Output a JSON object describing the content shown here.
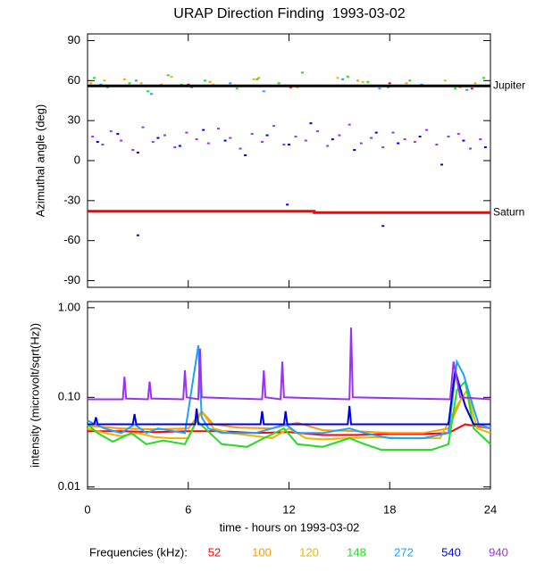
{
  "chart_data": [
    {
      "type": "scatter",
      "title": "URAP Direction Finding  1993-03-02",
      "ylabel": "Azimuthal angle (deg)",
      "xlim": [
        0,
        24
      ],
      "ylim": [
        -95,
        95
      ],
      "yticks": [
        -90,
        -60,
        -30,
        0,
        30,
        60,
        90
      ],
      "series": [
        {
          "color": "#ff0000",
          "x": [
            1.5,
            6.0,
            12.1,
            18.0,
            22.9
          ],
          "values": [
            56,
            57,
            55,
            58,
            54
          ]
        },
        {
          "color": "#ff9900",
          "x": [
            0.2,
            2.2,
            4.4,
            7.3,
            10.2,
            13.9,
            16.1,
            19.0,
            22.2
          ],
          "values": [
            58,
            61,
            57,
            59,
            62,
            56,
            60,
            58,
            55
          ]
        },
        {
          "color": "#e6b800",
          "x": [
            1.0,
            3.2,
            5.0,
            7.5,
            9.9,
            12.5,
            14.9,
            16.4,
            18.7,
            21.3,
            23.1
          ],
          "values": [
            60,
            58,
            63,
            57,
            61,
            55,
            62,
            59,
            56,
            60,
            58
          ]
        },
        {
          "color": "#22dd22",
          "x": [
            0.4,
            1.2,
            2.5,
            3.6,
            4.8,
            5.6,
            7.0,
            8.9,
            10.1,
            11.4,
            12.8,
            14.1,
            15.5,
            16.7,
            17.9,
            19.2,
            21.9,
            23.6
          ],
          "values": [
            62,
            55,
            58,
            52,
            64,
            57,
            60,
            54,
            61,
            58,
            66,
            56,
            63,
            59,
            55,
            60,
            54,
            62
          ]
        },
        {
          "color": "#1ea0ff",
          "x": [
            0.8,
            2.9,
            3.8,
            6.2,
            8.5,
            10.5,
            13.6,
            15.2,
            17.4,
            19.9,
            22.6
          ],
          "values": [
            57,
            60,
            50,
            55,
            58,
            52,
            56,
            61,
            54,
            57,
            53
          ]
        },
        {
          "color": "#0000dd",
          "x": [
            0.6,
            1.8,
            3.0,
            4.2,
            5.5,
            6.9,
            8.2,
            9.4,
            10.7,
            12.0,
            13.3,
            14.6,
            15.9,
            17.2,
            18.5,
            19.8,
            21.1,
            22.4,
            23.7,
            3.0,
            11.9,
            17.6
          ],
          "values": [
            14,
            20,
            6,
            17,
            11,
            23,
            15,
            4,
            19,
            12,
            28,
            16,
            8,
            21,
            13,
            18,
            -3,
            15,
            10,
            -56,
            -33,
            -49
          ]
        },
        {
          "color": "#9933ee",
          "x": [
            0.3,
            0.9,
            1.4,
            2.0,
            2.7,
            3.3,
            3.9,
            4.6,
            5.2,
            5.9,
            6.5,
            7.2,
            7.8,
            8.5,
            9.1,
            9.8,
            10.4,
            11.1,
            11.7,
            12.4,
            13.0,
            13.7,
            14.3,
            15.0,
            15.6,
            16.3,
            16.9,
            17.6,
            18.2,
            18.9,
            19.5,
            20.2,
            20.8,
            21.5,
            22.1,
            22.8,
            23.4
          ],
          "values": [
            18,
            12,
            22,
            15,
            8,
            25,
            14,
            19,
            10,
            21,
            16,
            13,
            24,
            17,
            9,
            20,
            14,
            26,
            12,
            18,
            15,
            22,
            11,
            19,
            27,
            13,
            17,
            10,
            21,
            16,
            14,
            23,
            12,
            18,
            20,
            9,
            16
          ]
        }
      ],
      "reference_lines": [
        {
          "name": "Jupiter",
          "color": "#000000",
          "x": [
            0,
            24
          ],
          "values": [
            56,
            56
          ]
        },
        {
          "name": "Saturn",
          "color": "#ff0000",
          "x": [
            0,
            13.5,
            13.5,
            24
          ],
          "values": [
            -38,
            -38,
            -39,
            -39
          ]
        }
      ]
    },
    {
      "type": "line",
      "ylabel": "intensity (microvolt/sqrt(Hz))",
      "xlabel": "time - hours on 1993-03-02",
      "log_scale": true,
      "legend_title": "Frequencies (kHz):",
      "xlim": [
        0,
        24
      ],
      "xticks": [
        0,
        6,
        12,
        18,
        24
      ],
      "ylim": [
        0.0095,
        1.17
      ],
      "yticks": [
        {
          "value": 0.01,
          "label": "0.01"
        },
        {
          "value": 0.1,
          "label": "0.10"
        },
        {
          "value": 1,
          "label": "1.00"
        }
      ],
      "series": [
        {
          "name": "52",
          "color": "#ff0000",
          "x": [
            0,
            2,
            4,
            6,
            8,
            10,
            12,
            14,
            16,
            18,
            20,
            21.5,
            22.5,
            24
          ],
          "values": [
            0.042,
            0.042,
            0.041,
            0.042,
            0.042,
            0.04,
            0.041,
            0.038,
            0.038,
            0.039,
            0.039,
            0.04,
            0.05,
            0.045
          ]
        },
        {
          "name": "100",
          "color": "#ff9900",
          "x": [
            0,
            2,
            4,
            6,
            6.8,
            7.5,
            9,
            11,
            12.5,
            14,
            16,
            18,
            20,
            21.5,
            22.3,
            23,
            24
          ],
          "values": [
            0.048,
            0.045,
            0.044,
            0.045,
            0.07,
            0.05,
            0.046,
            0.045,
            0.052,
            0.043,
            0.042,
            0.04,
            0.04,
            0.045,
            0.1,
            0.05,
            0.045
          ]
        },
        {
          "name": "120",
          "color": "#e6b800",
          "x": [
            0,
            1,
            2,
            3,
            4,
            5,
            6,
            6.8,
            7.5,
            8.5,
            10,
            11,
            12,
            13,
            14,
            15.5,
            17,
            19,
            21,
            22,
            22.6,
            23.2,
            24
          ],
          "values": [
            0.045,
            0.04,
            0.037,
            0.04,
            0.036,
            0.035,
            0.035,
            0.07,
            0.045,
            0.04,
            0.037,
            0.035,
            0.045,
            0.035,
            0.034,
            0.035,
            0.036,
            0.035,
            0.035,
            0.08,
            0.12,
            0.045,
            0.04
          ]
        },
        {
          "name": "148",
          "color": "#22dd22",
          "x": [
            0,
            0.6,
            1.5,
            2.6,
            3.5,
            4.5,
            5.8,
            6.5,
            7,
            8,
            9.5,
            10.5,
            11.7,
            12.5,
            14,
            15.6,
            16.5,
            17.5,
            19,
            20.5,
            21.5,
            22,
            22.5,
            23,
            24
          ],
          "values": [
            0.05,
            0.04,
            0.032,
            0.04,
            0.03,
            0.033,
            0.03,
            0.055,
            0.045,
            0.03,
            0.028,
            0.035,
            0.045,
            0.03,
            0.028,
            0.035,
            0.03,
            0.026,
            0.026,
            0.026,
            0.03,
            0.12,
            0.15,
            0.045,
            0.03
          ]
        },
        {
          "name": "272",
          "color": "#1ea0ff",
          "x": [
            0,
            1,
            2,
            2.8,
            3.5,
            4.2,
            5.8,
            6.6,
            6.8,
            7.2,
            8,
            10,
            11,
            11.8,
            12.5,
            14,
            15.6,
            16.5,
            18,
            20,
            21.5,
            22,
            22.4,
            22.8,
            23.3,
            24
          ],
          "values": [
            0.055,
            0.045,
            0.04,
            0.05,
            0.04,
            0.045,
            0.04,
            0.38,
            0.06,
            0.045,
            0.04,
            0.04,
            0.045,
            0.05,
            0.04,
            0.04,
            0.045,
            0.04,
            0.035,
            0.035,
            0.04,
            0.25,
            0.18,
            0.1,
            0.05,
            0.045
          ]
        },
        {
          "name": "540",
          "color": "#0000dd",
          "x": [
            0,
            0.4,
            0.5,
            0.6,
            2.7,
            2.8,
            2.9,
            4,
            6.4,
            6.5,
            6.6,
            9,
            10.3,
            10.4,
            10.5,
            11.7,
            11.8,
            11.9,
            15.5,
            15.6,
            15.7,
            21.5,
            21.9,
            22.5,
            23,
            24
          ],
          "values": [
            0.05,
            0.05,
            0.06,
            0.05,
            0.05,
            0.065,
            0.05,
            0.05,
            0.05,
            0.075,
            0.05,
            0.05,
            0.05,
            0.07,
            0.05,
            0.05,
            0.07,
            0.05,
            0.05,
            0.08,
            0.05,
            0.05,
            0.2,
            0.08,
            0.05,
            0.05
          ]
        },
        {
          "name": "940",
          "color": "#9933ee",
          "x": [
            0,
            2.1,
            2.2,
            2.3,
            3.6,
            3.7,
            3.8,
            5.7,
            5.8,
            5.9,
            6.6,
            6.7,
            6.8,
            10.4,
            10.5,
            10.6,
            11.5,
            11.6,
            11.7,
            15.6,
            15.7,
            15.8,
            21.6,
            21.8,
            22.2,
            24
          ],
          "values": [
            0.095,
            0.095,
            0.17,
            0.097,
            0.095,
            0.15,
            0.097,
            0.095,
            0.2,
            0.1,
            0.095,
            0.35,
            0.1,
            0.095,
            0.2,
            0.1,
            0.095,
            0.25,
            0.1,
            0.095,
            0.6,
            0.1,
            0.095,
            0.25,
            0.1,
            0.095
          ]
        }
      ]
    }
  ]
}
